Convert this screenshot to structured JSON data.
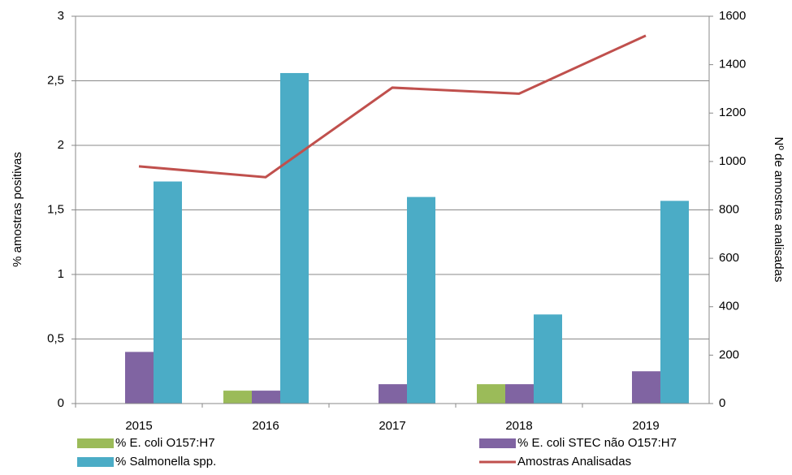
{
  "chart_data": {
    "type": "bar",
    "categories": [
      "2015",
      "2016",
      "2017",
      "2018",
      "2019"
    ],
    "series": [
      {
        "name": "% E. coli O157:H7",
        "color": "#9bbb59",
        "values": [
          0,
          0.1,
          0,
          0.15,
          0
        ]
      },
      {
        "name": "% E. coli STEC não O157:H7",
        "color": "#8064a2",
        "values": [
          0.4,
          0.1,
          0.15,
          0.15,
          0.25
        ]
      },
      {
        "name": "% Salmonella spp.",
        "color": "#4bacc6",
        "values": [
          1.72,
          2.56,
          1.6,
          0.69,
          1.57
        ]
      },
      {
        "name": "Amostras Analisadas",
        "color": "#c0504d",
        "type": "line",
        "axis": "y2",
        "values": [
          980,
          935,
          1305,
          1280,
          1520
        ]
      }
    ],
    "ylabel": "% amostras positivas",
    "y2label": "Nº de amostras analisadas",
    "ylim": [
      0,
      3
    ],
    "yticks": [
      0,
      {
        "value": 0.5,
        "label": "0,5"
      },
      1,
      {
        "value": 1.5,
        "label": "1,5"
      },
      2,
      {
        "value": 2.5,
        "label": "2,5"
      },
      3
    ],
    "y2lim": [
      0,
      1600
    ],
    "y2ticks": [
      0,
      200,
      400,
      600,
      800,
      1000,
      1200,
      1400,
      1600
    ],
    "grid": true,
    "legend": "bottom"
  }
}
